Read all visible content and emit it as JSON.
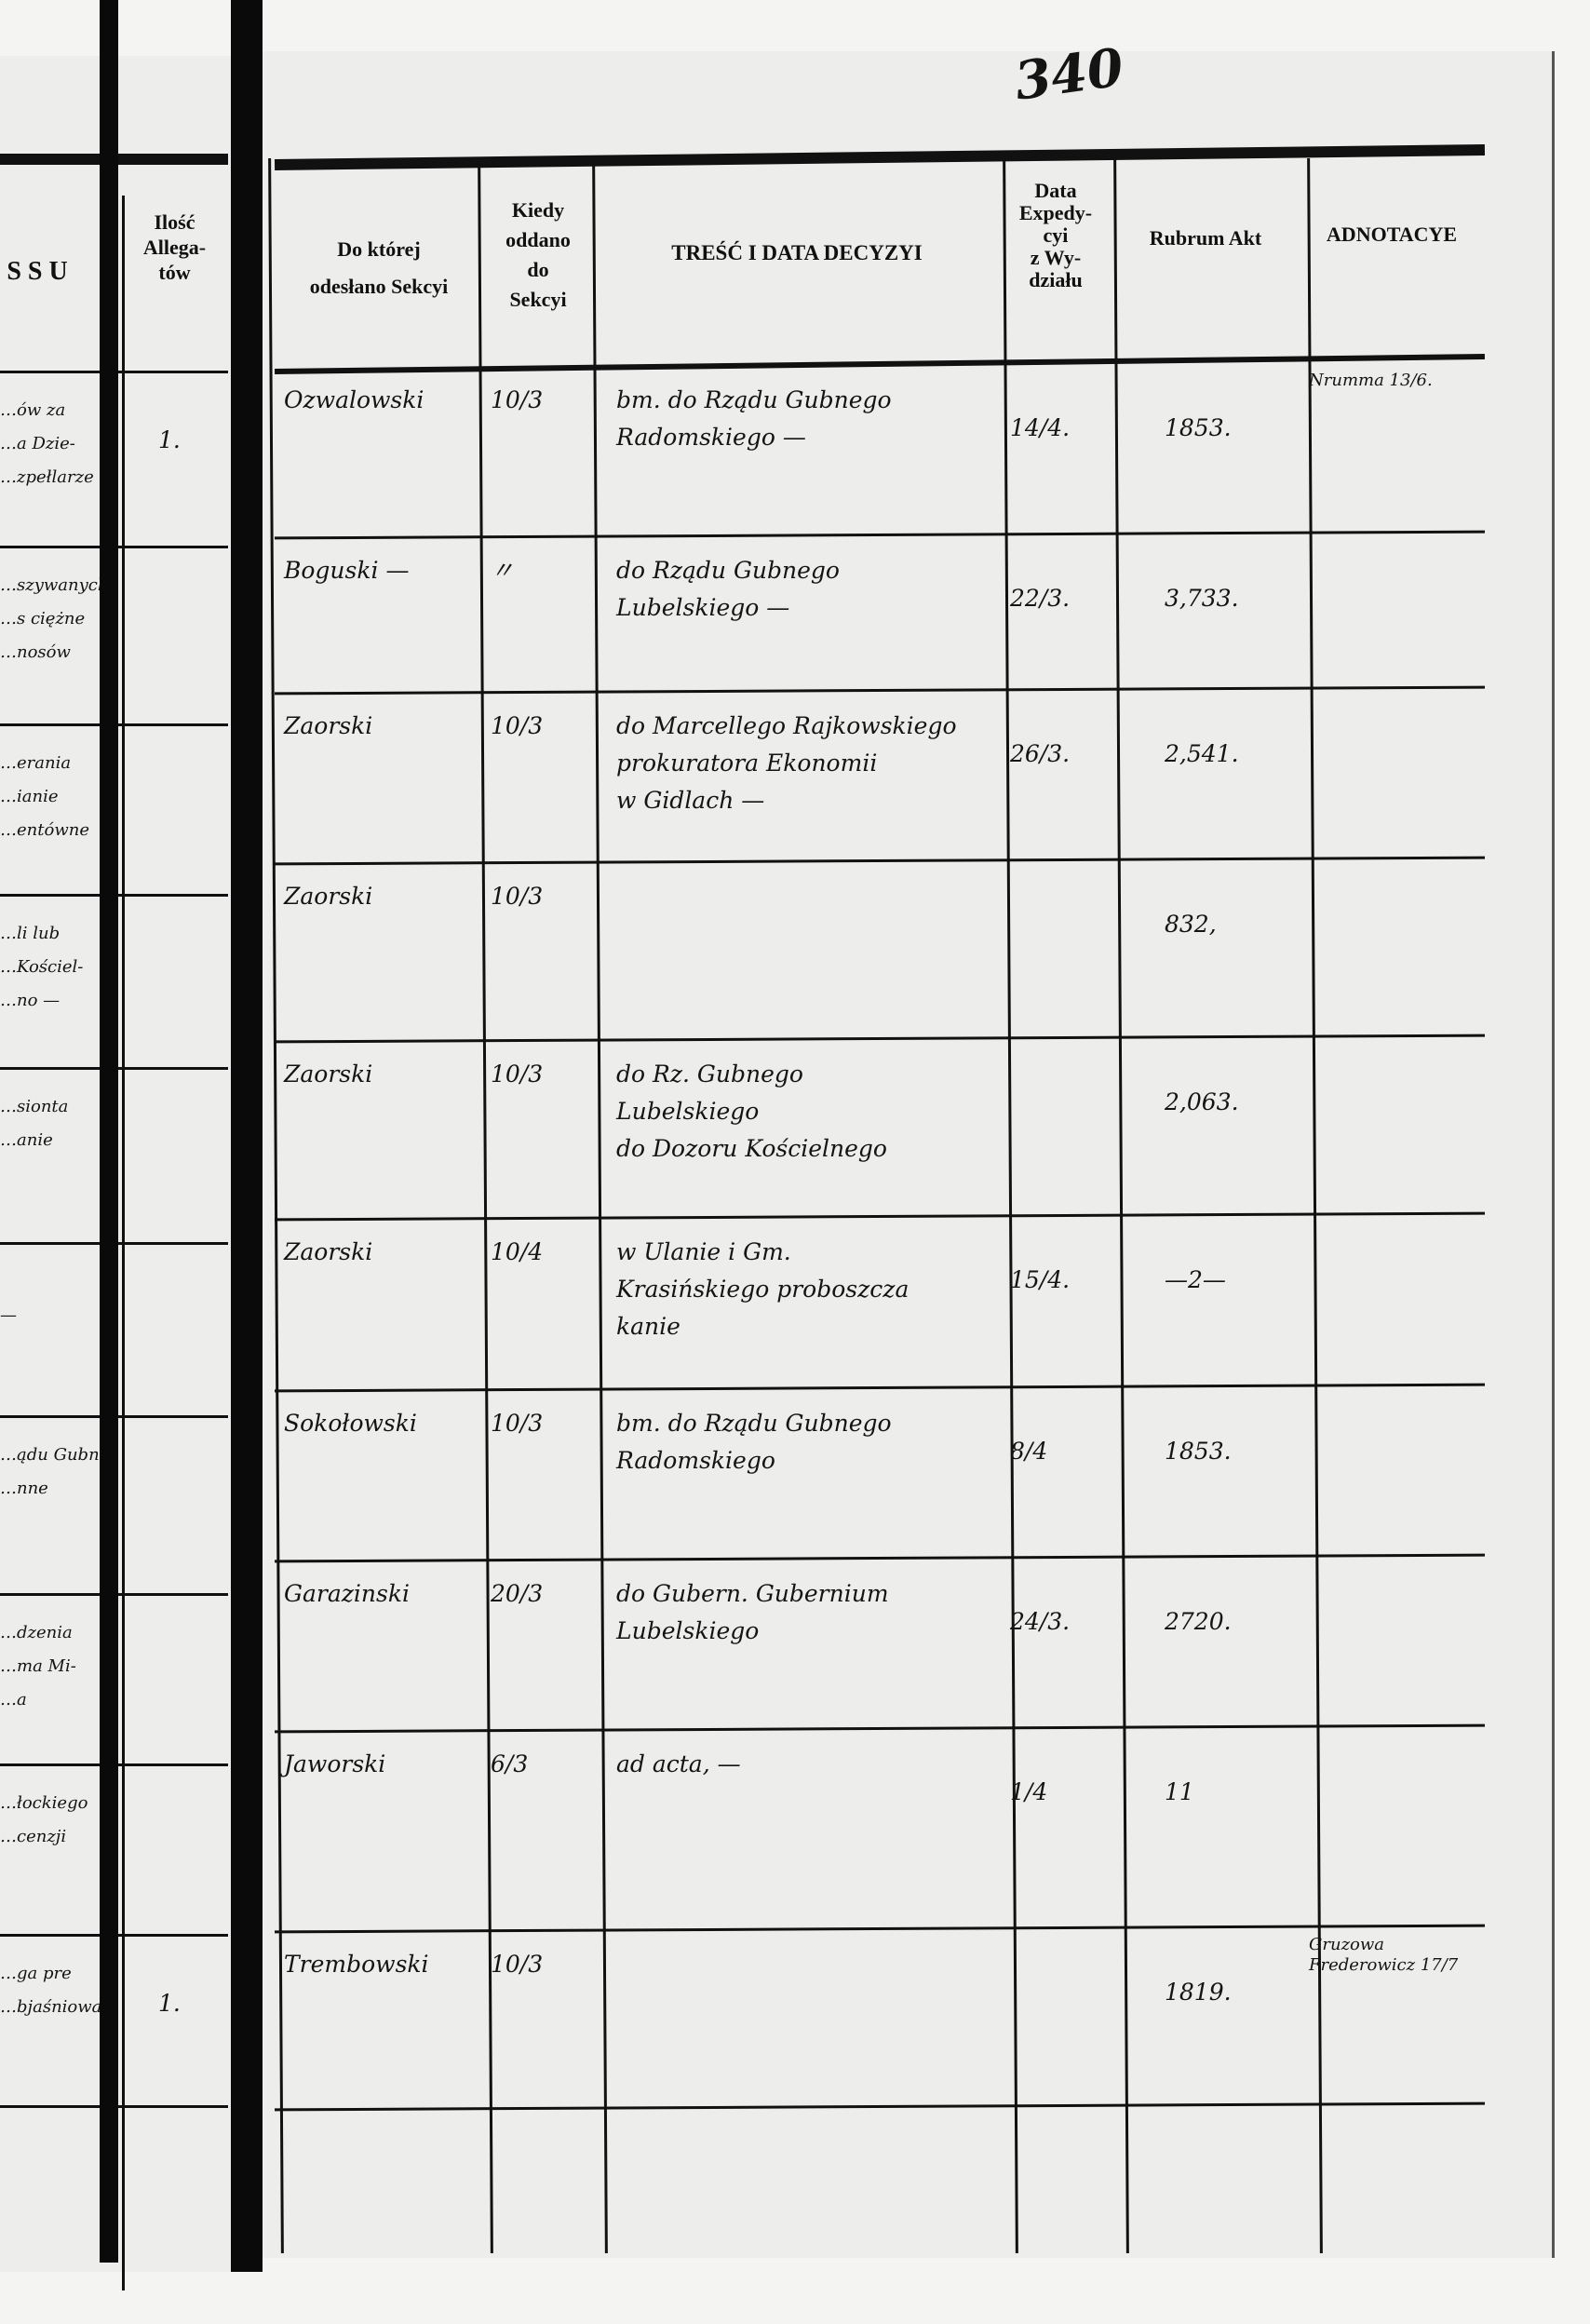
{
  "page_number": "340",
  "left_page": {
    "header": {
      "col_title_fragment": "S S U",
      "allegaty": "Ilość\nAllega-\ntów"
    },
    "rows": [
      {
        "text": "…ów za\n…a Dzie-\n…zpełlarze",
        "count": "1."
      },
      {
        "text": "…szywanych\n…s ciężne\n…nosów",
        "count": ""
      },
      {
        "text": "…erania\n…ianie\n…entówne",
        "count": ""
      },
      {
        "text": "…li lub\n…Kościel-\n…no —",
        "count": ""
      },
      {
        "text": "…sionta\n…anie",
        "count": ""
      },
      {
        "text": "\n—",
        "count": ""
      },
      {
        "text": "…ądu Gubn\n…nne",
        "count": ""
      },
      {
        "text": "…dzenia\n…ma Mi-\n…a",
        "count": ""
      },
      {
        "text": "…łockiego\n…cenzji",
        "count": ""
      },
      {
        "text": "…ga pre\n…bjaśniowa",
        "count": "1."
      }
    ]
  },
  "right_page": {
    "headers": {
      "sekcja": "Do której\nodesłano Sekcyi",
      "kiedy": "Kiedy\noddano\ndo\nSekcyi",
      "tresc": "TREŚĆ I DATA DECYZYI",
      "data_exp": "Data\nExpedy-\ncyi\nz Wy-\ndziału",
      "rubrum": "Rubrum Akt",
      "adnotacye": "ADNOTACYE"
    },
    "rows": [
      {
        "sekcja": "Ozwalowski",
        "kiedy": "10/3",
        "tresc": "bm.   do Rządu Gubnego\nRadomskiego —",
        "data_exp": "14/4.",
        "rubrum": "1853.",
        "adnotacye": "Nrumma 13/6."
      },
      {
        "sekcja": "Boguski —",
        "kiedy": "〃",
        "tresc": "do Rządu Gubnego\nLubelskiego —",
        "data_exp": "22/3.",
        "rubrum": "3,733.",
        "adnotacye": ""
      },
      {
        "sekcja": "Zaorski",
        "kiedy": "10/3",
        "tresc": "do Marcellego Rajkowskiego\nprokuratora Ekonomii\nw Gidlach —",
        "data_exp": "26/3.",
        "rubrum": "2,541.",
        "adnotacye": ""
      },
      {
        "sekcja": "Zaorski",
        "kiedy": "10/3",
        "tresc": "",
        "data_exp": "",
        "rubrum": "832,",
        "adnotacye": ""
      },
      {
        "sekcja": "Zaorski",
        "kiedy": "10/3",
        "tresc": "do Rz. Gubnego\nLubelskiego\ndo Dozoru Kościelnego",
        "data_exp": "",
        "rubrum": "2,063.",
        "adnotacye": ""
      },
      {
        "sekcja": "Zaorski",
        "kiedy": "10/4",
        "tresc": "w Ulanie i Gm.\nKrasińskiego proboszcza\nkanie",
        "data_exp": "15/4.",
        "rubrum": "—2—",
        "adnotacye": ""
      },
      {
        "sekcja": "Sokołowski",
        "kiedy": "10/3",
        "tresc": "bm.   do Rządu Gubnego\nRadomskiego",
        "data_exp": "8/4",
        "rubrum": "1853.",
        "adnotacye": ""
      },
      {
        "sekcja": "Garazinski",
        "kiedy": "20/3",
        "tresc": "do Gubern. Gubernium\nLubelskiego",
        "data_exp": "24/3.",
        "rubrum": "2720.",
        "adnotacye": ""
      },
      {
        "sekcja": "Jaworski",
        "kiedy": "6/3",
        "tresc": "ad acta, —",
        "data_exp": "1/4",
        "rubrum": "11",
        "adnotacye": ""
      },
      {
        "sekcja": "Trembowski",
        "kiedy": "10/3",
        "tresc": "",
        "data_exp": "",
        "rubrum": "1819.",
        "adnotacye": "Gruzowa\nFrederowicz 17/7"
      }
    ]
  }
}
